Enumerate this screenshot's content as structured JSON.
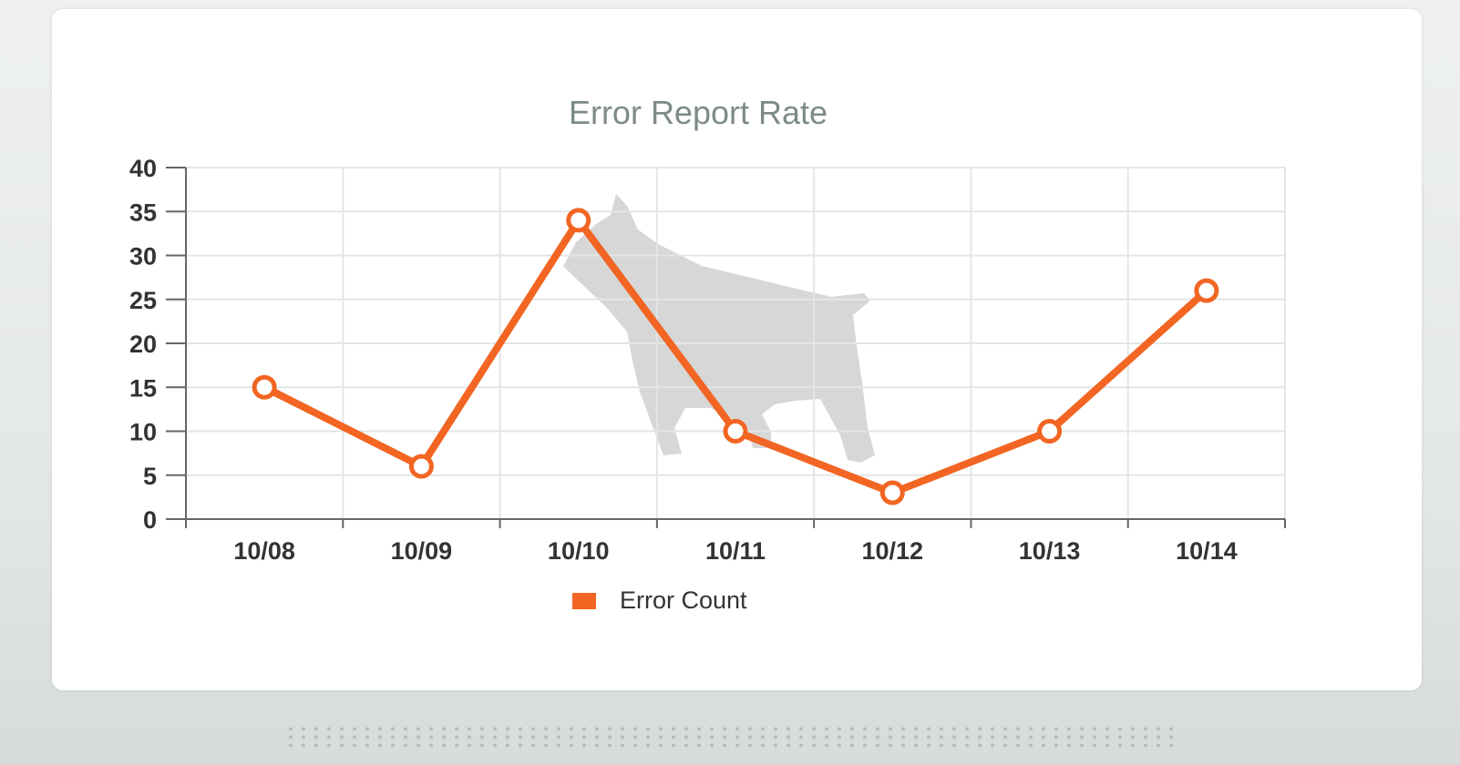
{
  "chart_data": {
    "type": "line",
    "title": "Error Report Rate",
    "categories": [
      "10/08",
      "10/09",
      "10/10",
      "10/11",
      "10/12",
      "10/13",
      "10/14"
    ],
    "series": [
      {
        "name": "Error Count",
        "values": [
          15,
          6,
          34,
          10,
          3,
          10,
          26
        ],
        "color": "#f26522"
      }
    ],
    "y_ticks": [
      "0",
      "5",
      "10",
      "15",
      "20",
      "25",
      "30",
      "35",
      "40"
    ],
    "ylim": [
      0,
      40
    ],
    "grid": true,
    "legend": "bottom-center"
  },
  "colors": {
    "title": "#7d8a8a",
    "axis_text": "#333333",
    "grid": "#e3e6e5",
    "axis": "#666666",
    "watermark": "#c9c9c9"
  },
  "icons": {
    "watermark": "dog-silhouette-icon"
  }
}
